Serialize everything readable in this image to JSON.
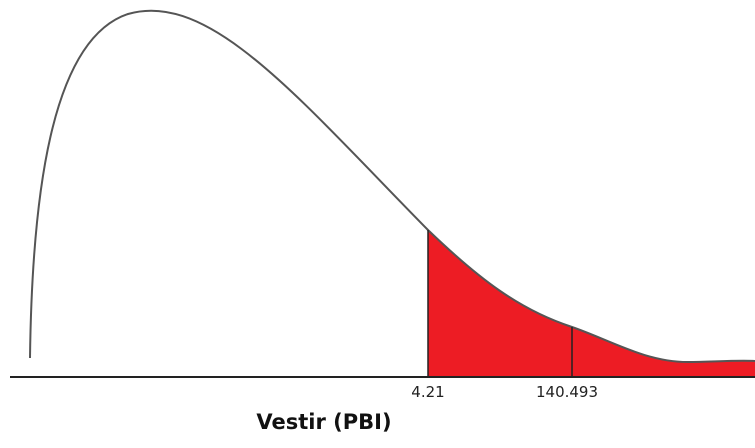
{
  "caption": "Vestir (PBI)",
  "colors": {
    "curve": "#555555",
    "axis": "#222222",
    "shade": "#ed1c24",
    "boundary": "#222222"
  },
  "chart_data": {
    "type": "area",
    "tick_labels": [
      "4.21",
      "140.493"
    ],
    "shaded_region": "right tail from 4.21",
    "grid": false
  }
}
